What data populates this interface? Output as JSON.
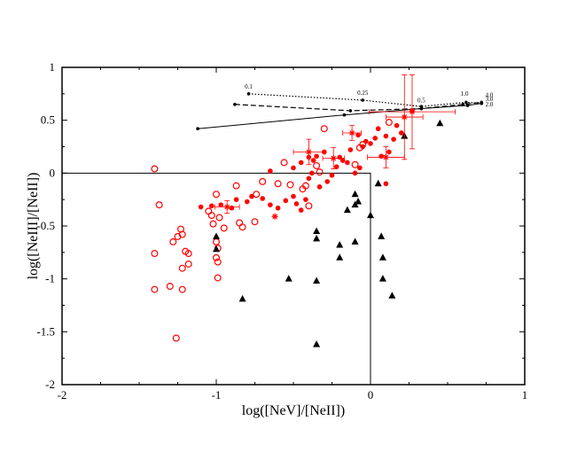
{
  "chart_data": {
    "type": "scatter",
    "xlabel": "log([NeV]/[NeII])",
    "ylabel": "log([NeIII]/[NeII])",
    "xlim": [
      -2,
      1
    ],
    "ylim": [
      -2,
      1
    ],
    "xticks": [
      "-2",
      "-1",
      "0",
      "1"
    ],
    "yticks": [
      "1",
      "0.5",
      "0",
      "-0.5",
      "-1",
      "-1.5",
      "-2"
    ],
    "region_box": {
      "x": [
        -2,
        0
      ],
      "y": [
        -2,
        0
      ]
    },
    "series": [
      {
        "marker": "open-circle",
        "color": "#ff0000",
        "points": [
          [
            -1.4,
            0.04
          ],
          [
            -1.37,
            -0.3
          ],
          [
            -1.4,
            -0.76
          ],
          [
            -1.4,
            -1.1
          ],
          [
            -1.28,
            -0.65
          ],
          [
            -1.25,
            -0.6
          ],
          [
            -1.23,
            -0.53
          ],
          [
            -1.22,
            -0.58
          ],
          [
            -1.2,
            -0.74
          ],
          [
            -1.18,
            -0.76
          ],
          [
            -1.18,
            -0.86
          ],
          [
            -1.22,
            -0.9
          ],
          [
            -1.3,
            -1.07
          ],
          [
            -1.22,
            -1.1
          ],
          [
            -1.26,
            -1.56
          ],
          [
            -1.05,
            -0.36
          ],
          [
            -1.03,
            -0.4
          ],
          [
            -1.0,
            -0.2
          ],
          [
            -1.02,
            -0.48
          ],
          [
            -0.98,
            -0.42
          ],
          [
            -0.95,
            -0.52
          ],
          [
            -1.0,
            -0.65
          ],
          [
            -0.99,
            -0.71
          ],
          [
            -1.0,
            -0.8
          ],
          [
            -0.99,
            -0.84
          ],
          [
            -0.99,
            -0.99
          ],
          [
            -0.87,
            -0.12
          ],
          [
            -0.85,
            -0.47
          ],
          [
            -0.83,
            -0.51
          ],
          [
            -0.75,
            -0.46
          ],
          [
            -0.74,
            -0.2
          ],
          [
            -0.7,
            -0.08
          ],
          [
            -0.6,
            -0.1
          ],
          [
            -0.52,
            -0.11
          ],
          [
            -0.56,
            0.1
          ],
          [
            -0.44,
            -0.15
          ],
          [
            -0.42,
            -0.12
          ],
          [
            -0.4,
            -0.31
          ],
          [
            -0.35,
            0.07
          ],
          [
            -0.33,
            0.01
          ],
          [
            -0.3,
            0.42
          ],
          [
            -0.1,
            0.08
          ],
          [
            -0.07,
            0.24
          ],
          [
            -0.05,
            0.27
          ],
          [
            0.12,
            0.48
          ]
        ]
      },
      {
        "marker": "filled-circle",
        "color": "#ff0000",
        "points": [
          [
            -1.1,
            -0.32
          ],
          [
            -1.03,
            -0.31
          ],
          [
            -0.97,
            -0.3
          ],
          [
            -0.9,
            -0.33
          ],
          [
            -0.87,
            -0.25
          ],
          [
            -0.8,
            -0.27
          ],
          [
            -0.77,
            -0.22
          ],
          [
            -0.7,
            -0.24
          ],
          [
            -0.65,
            -0.3
          ],
          [
            -0.6,
            -0.33
          ],
          [
            -0.55,
            -0.26
          ],
          [
            -0.5,
            -0.22
          ],
          [
            -0.48,
            -0.29
          ],
          [
            -0.45,
            -0.35
          ],
          [
            -0.42,
            -0.25
          ],
          [
            -0.4,
            -0.05
          ],
          [
            -0.38,
            0.0
          ],
          [
            -0.5,
            0.05
          ],
          [
            -0.45,
            0.1
          ],
          [
            -0.4,
            0.15
          ],
          [
            -0.37,
            0.12
          ],
          [
            -0.35,
            0.16
          ],
          [
            -0.3,
            0.2
          ],
          [
            -0.33,
            -0.13
          ],
          [
            -0.28,
            -0.08
          ],
          [
            -0.25,
            -0.02
          ],
          [
            -0.22,
            0.06
          ],
          [
            -0.2,
            0.15
          ],
          [
            -0.18,
            0.12
          ],
          [
            -0.15,
            0.1
          ],
          [
            -0.1,
            0.0
          ],
          [
            -0.07,
            0.05
          ],
          [
            -0.05,
            0.25
          ],
          [
            -0.03,
            0.3
          ],
          [
            0.0,
            0.28
          ],
          [
            0.03,
            0.33
          ],
          [
            0.05,
            0.42
          ],
          [
            0.1,
            0.35
          ],
          [
            0.12,
            0.2
          ],
          [
            0.15,
            0.32
          ],
          [
            0.17,
            0.45
          ],
          [
            0.2,
            0.38
          ],
          [
            0.1,
            -0.1
          ],
          [
            0.07,
            0.16
          ],
          [
            0.27,
            0.59
          ],
          [
            -0.65,
            0.02
          ],
          [
            -0.08,
            0.36
          ],
          [
            -0.13,
            0.22
          ]
        ]
      },
      {
        "marker": "filled-triangle",
        "color": "#000000",
        "points": [
          [
            -1.0,
            -0.72
          ],
          [
            -1.0,
            -0.6
          ],
          [
            -0.83,
            -1.19
          ],
          [
            -0.53,
            -1.0
          ],
          [
            -0.35,
            -0.55
          ],
          [
            -0.35,
            -0.62
          ],
          [
            -0.35,
            -1.02
          ],
          [
            -0.35,
            -1.62
          ],
          [
            -0.2,
            -0.68
          ],
          [
            -0.2,
            -0.8
          ],
          [
            -0.15,
            -0.35
          ],
          [
            -0.1,
            -0.2
          ],
          [
            -0.1,
            -0.3
          ],
          [
            -0.1,
            -0.65
          ],
          [
            -0.08,
            -0.27
          ],
          [
            0.0,
            -0.4
          ],
          [
            0.05,
            -0.1
          ],
          [
            0.07,
            -0.6
          ],
          [
            0.08,
            -0.8
          ],
          [
            0.08,
            -1.0
          ],
          [
            0.14,
            -1.16
          ],
          [
            0.22,
            0.35
          ],
          [
            0.45,
            0.47
          ]
        ]
      },
      {
        "marker": "asterisk-errorbar",
        "color": "#ff0000",
        "points": [
          {
            "x": -0.93,
            "y": -0.32,
            "xerr": 0.08,
            "yerr": 0.06
          },
          {
            "x": -0.62,
            "y": -0.41,
            "xerr": 0.0,
            "yerr": 0.0
          },
          {
            "x": -0.4,
            "y": 0.2,
            "xerr": 0.1,
            "yerr": 0.12
          },
          {
            "x": -0.24,
            "y": 0.14,
            "xerr": 0.07,
            "yerr": 0.1
          },
          {
            "x": -0.12,
            "y": 0.38,
            "xerr": 0.06,
            "yerr": 0.07
          },
          {
            "x": 0.1,
            "y": 0.15,
            "xerr": 0.12,
            "yerr": 0.1
          },
          {
            "x": 0.22,
            "y": 0.53,
            "xerr": 0.12,
            "yerr": 0.4
          },
          {
            "x": 0.27,
            "y": 0.58,
            "xerr": 0.28,
            "yerr": 0.35
          }
        ]
      }
    ],
    "model_tracks": [
      {
        "style": "dotted",
        "points": [
          [
            -0.79,
            0.75
          ],
          [
            -0.05,
            0.69
          ],
          [
            0.33,
            0.63
          ],
          [
            0.62,
            0.67
          ],
          [
            0.72,
            0.66
          ]
        ],
        "labels": [
          {
            "text": "0.1",
            "at": [
              -0.79,
              0.8
            ]
          },
          {
            "text": "0.25",
            "at": [
              -0.05,
              0.74
            ]
          },
          {
            "text": "0.5",
            "at": [
              0.33,
              0.67
            ]
          },
          {
            "text": "1.0",
            "at": [
              0.61,
              0.73
            ]
          },
          {
            "text": "4.0",
            "at": [
              0.77,
              0.72
            ]
          },
          {
            "text": "3.0",
            "at": [
              0.77,
              0.68
            ]
          },
          {
            "text": "2.0",
            "at": [
              0.77,
              0.63
            ]
          }
        ]
      },
      {
        "style": "dashed",
        "points": [
          [
            -0.88,
            0.65
          ],
          [
            -0.13,
            0.59
          ],
          [
            0.33,
            0.61
          ],
          [
            0.6,
            0.65
          ],
          [
            0.72,
            0.67
          ]
        ]
      },
      {
        "style": "solid",
        "points": [
          [
            -1.12,
            0.42
          ],
          [
            -0.17,
            0.55
          ],
          [
            0.33,
            0.61
          ],
          [
            0.63,
            0.64
          ],
          [
            0.72,
            0.66
          ]
        ]
      }
    ]
  }
}
